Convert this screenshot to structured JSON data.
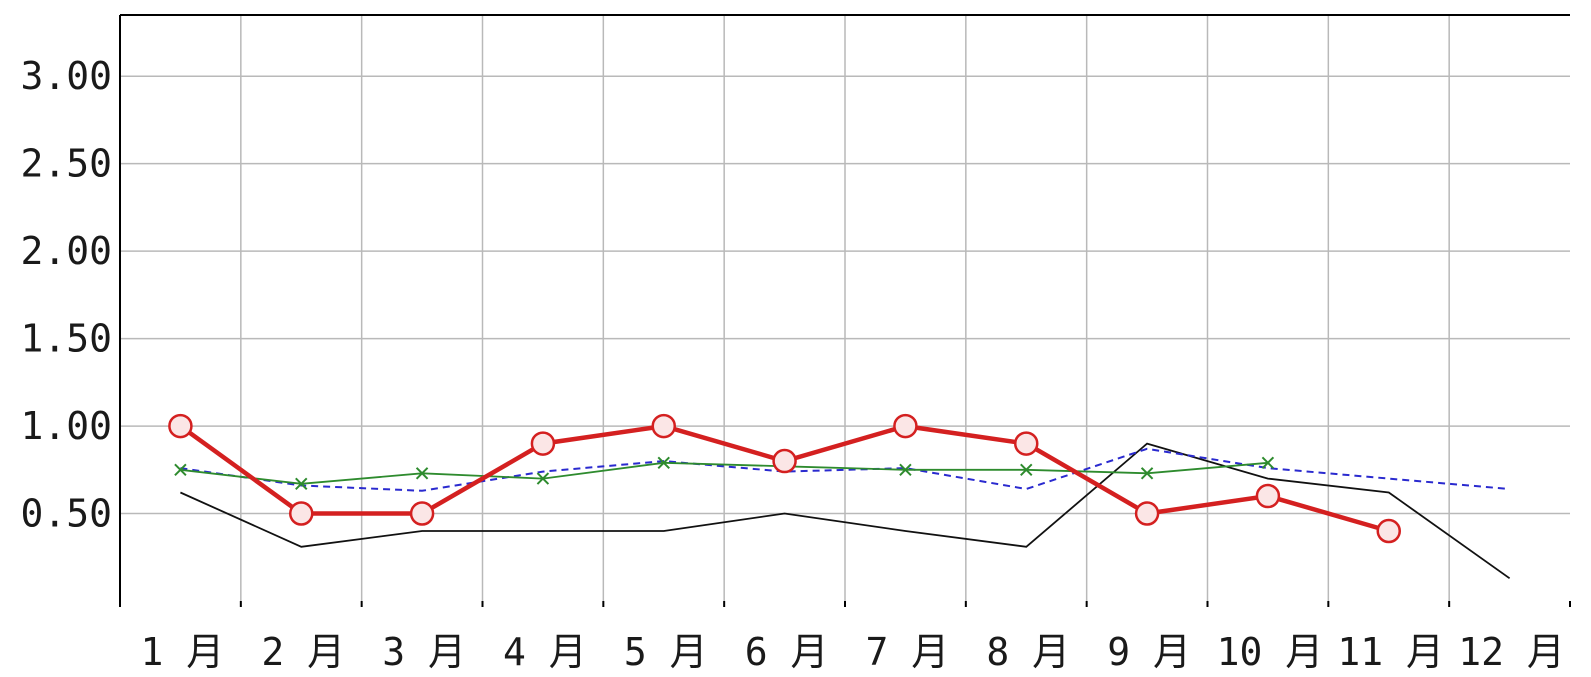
{
  "chart_data": {
    "type": "line",
    "categories": [
      "1 月",
      "2 月",
      "3 月",
      "4 月",
      "5 月",
      "6 月",
      "7 月",
      "8 月",
      "9 月",
      "10 月",
      "11 月",
      "12 月"
    ],
    "ylim": [
      0,
      3.35
    ],
    "yticks": [
      0.5,
      1.0,
      1.5,
      2.0,
      2.5,
      3.0
    ],
    "ytick_labels": [
      "0.50",
      "1.00",
      "1.50",
      "2.00",
      "2.50",
      "3.00"
    ],
    "grid": true,
    "series": [
      {
        "color": "#d42020",
        "style": "solid",
        "marker": "circle",
        "values": [
          1.0,
          0.5,
          0.5,
          0.9,
          1.0,
          0.8,
          1.0,
          0.9,
          0.5,
          0.6,
          0.4,
          null
        ]
      },
      {
        "color": "#2e8b2e",
        "style": "solid",
        "marker": "x",
        "values": [
          0.75,
          0.67,
          0.73,
          0.7,
          0.79,
          0.77,
          0.75,
          0.75,
          0.73,
          0.79,
          null,
          null
        ]
      },
      {
        "color": "#2a2acf",
        "style": "dashed",
        "marker": "none",
        "values": [
          0.76,
          0.66,
          0.63,
          0.74,
          0.8,
          0.74,
          0.76,
          0.64,
          0.87,
          0.76,
          0.7,
          0.64
        ]
      },
      {
        "color": "#111111",
        "style": "solid",
        "marker": "none",
        "values": [
          0.62,
          0.31,
          0.4,
          0.4,
          0.4,
          0.5,
          0.4,
          0.31,
          0.9,
          0.7,
          0.62,
          0.13
        ]
      }
    ]
  }
}
